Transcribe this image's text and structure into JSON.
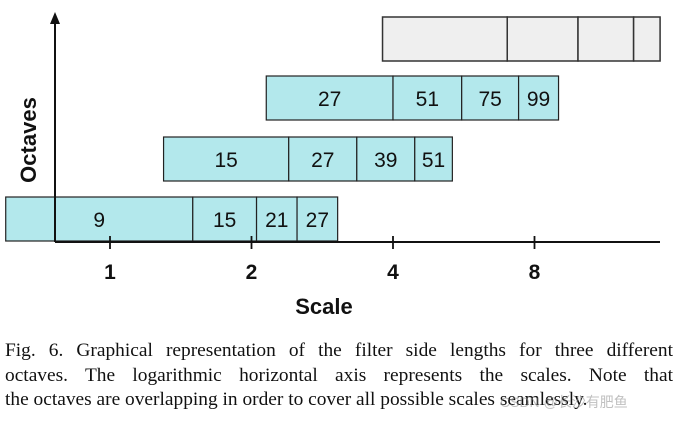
{
  "figure": {
    "ylabel": "Octaves",
    "xlabel": "Scale",
    "box_fill": "#b3e8ec",
    "empty_box_fill": "#efefef",
    "box_stroke": "#222222",
    "axis_color": "#111111"
  },
  "chart_data": {
    "type": "bar",
    "title": "",
    "xlabel": "Scale",
    "ylabel": "Octaves",
    "x_scale": "log2",
    "x_ticks": [
      1,
      2,
      4,
      8
    ],
    "rows": [
      {
        "row": 1,
        "filter_sizes": [
          9,
          15,
          21,
          27
        ],
        "scale_start": 0.6,
        "scale_bounds": [
          0.6,
          1.5,
          2.05,
          2.5,
          3.05
        ]
      },
      {
        "row": 2,
        "filter_sizes": [
          15,
          27,
          39,
          51
        ],
        "scale_start": 1.3,
        "scale_bounds": [
          1.3,
          2.4,
          3.35,
          4.45,
          5.35
        ]
      },
      {
        "row": 3,
        "filter_sizes": [
          27,
          51,
          75,
          99
        ],
        "scale_start": 2.15,
        "scale_bounds": [
          2.15,
          4.0,
          5.6,
          7.4,
          9.0
        ]
      },
      {
        "row": 4,
        "filter_sizes": [
          "",
          "",
          "",
          ""
        ],
        "scale_start": 3.8,
        "scale_bounds": [
          3.8,
          7.0,
          9.9,
          13.0,
          14.8
        ]
      }
    ]
  },
  "caption": {
    "lines": [
      "Fig. 6.  Graphical representation of the filter side lengths for three different",
      "octaves. The logarithmic horizontal axis represents the scales. Note that",
      "the octaves are overlapping in order to cover all possible scales seamlessly."
    ]
  },
  "watermark": "CSDN @长沙有肥鱼"
}
